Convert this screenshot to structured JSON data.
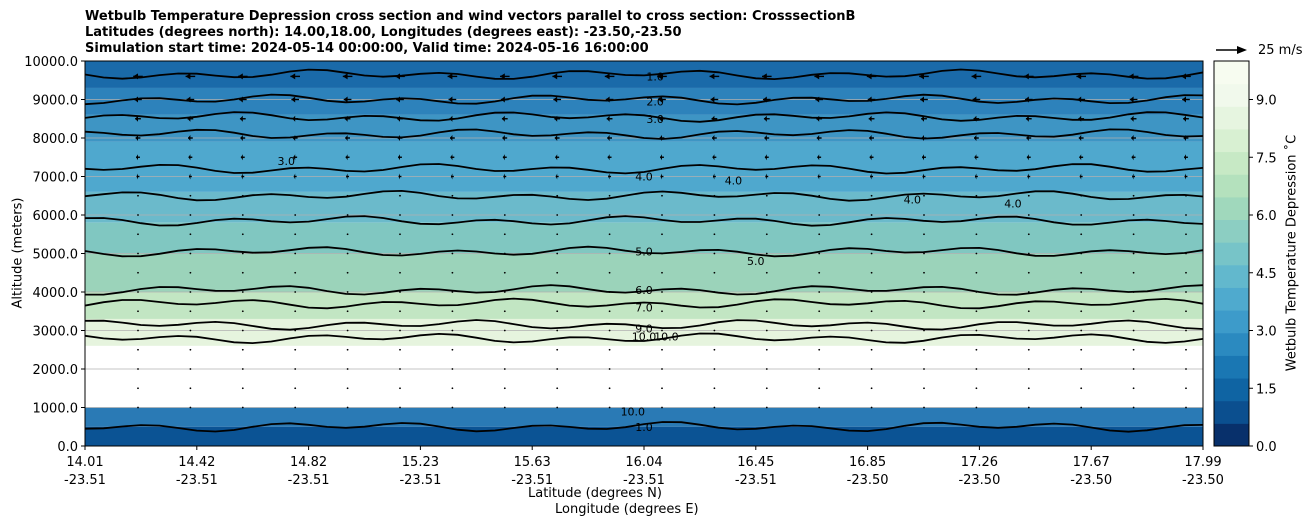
{
  "chart_data": {
    "type": "contour",
    "title_lines": [
      "Wetbulb Temperature Depression cross section and wind vectors parallel to cross section: CrosssectionB",
      "Latitudes (degrees north): 14.00,18.00, Longitudes (degrees east): -23.50,-23.50",
      "Simulation start time: 2024-05-14 00:00:00, Valid time: 2024-05-16 16:00:00"
    ],
    "xlabel_lat": "Latitude (degrees N)",
    "xlabel_lon": "Longitude (degrees E)",
    "ylabel": "Altitude (meters)",
    "colorbar_label": "Wetbulb Temperature Depression ˚C",
    "colorbar_ticks": [
      "0.0",
      "1.5",
      "3.0",
      "4.5",
      "6.0",
      "7.5",
      "9.0"
    ],
    "colorbar_range": [
      0,
      10
    ],
    "wind_reference": "25 m/s",
    "ylim": [
      0,
      10000
    ],
    "yticks": [
      "0.0",
      "1000.0",
      "2000.0",
      "3000.0",
      "4000.0",
      "5000.0",
      "6000.0",
      "7000.0",
      "8000.0",
      "9000.0",
      "10000.0"
    ],
    "xticks": [
      {
        "lat": "14.01",
        "lon": "-23.51"
      },
      {
        "lat": "14.42",
        "lon": "-23.51"
      },
      {
        "lat": "14.82",
        "lon": "-23.51"
      },
      {
        "lat": "15.23",
        "lon": "-23.51"
      },
      {
        "lat": "15.63",
        "lon": "-23.51"
      },
      {
        "lat": "16.04",
        "lon": "-23.51"
      },
      {
        "lat": "16.45",
        "lon": "-23.51"
      },
      {
        "lat": "16.85",
        "lon": "-23.50"
      },
      {
        "lat": "17.26",
        "lon": "-23.50"
      },
      {
        "lat": "17.67",
        "lon": "-23.50"
      },
      {
        "lat": "17.99",
        "lon": "-23.50"
      }
    ],
    "bands": [
      {
        "bottom": 9300,
        "top": 10000,
        "color": "#1a6aa9"
      },
      {
        "bottom": 8600,
        "top": 9300,
        "color": "#2d82bb"
      },
      {
        "bottom": 7900,
        "top": 8600,
        "color": "#3e95c4"
      },
      {
        "bottom": 6600,
        "top": 7900,
        "color": "#4fa8ce"
      },
      {
        "bottom": 5800,
        "top": 6600,
        "color": "#6bbacb"
      },
      {
        "bottom": 5000,
        "top": 5800,
        "color": "#80c7c1"
      },
      {
        "bottom": 4000,
        "top": 5000,
        "color": "#9bd3ba"
      },
      {
        "bottom": 3300,
        "top": 4000,
        "color": "#c2e6c3"
      },
      {
        "bottom": 2600,
        "top": 3300,
        "color": "#e6f4de"
      },
      {
        "bottom": 1000,
        "top": 2600,
        "color": "#ffffff"
      },
      {
        "bottom": 500,
        "top": 1000,
        "color": "#2a7ab5"
      },
      {
        "bottom": 0,
        "top": 500,
        "color": "#0b5394"
      }
    ],
    "contours": [
      {
        "level": "1.0",
        "altitude": 9650
      },
      {
        "level": "2.0",
        "altitude": 9000
      },
      {
        "level": "3.0",
        "altitude": 8550
      },
      {
        "level": "3.0",
        "altitude": 8100
      },
      {
        "level": "4.0",
        "altitude": 7200
      },
      {
        "level": "4.0",
        "altitude": 6500
      },
      {
        "level": "5.0",
        "altitude": 5850
      },
      {
        "level": "5.0",
        "altitude": 5050
      },
      {
        "level": "6.0",
        "altitude": 4050
      },
      {
        "level": "7.0",
        "altitude": 3700
      },
      {
        "level": "9.0",
        "altitude": 3150
      },
      {
        "level": "10.0",
        "altitude": 2800
      },
      {
        "level": "1.0",
        "altitude": 500
      }
    ],
    "inline_labels": [
      {
        "text": "1.0",
        "x_frac": 0.51,
        "altitude": 9600
      },
      {
        "text": "2.0",
        "x_frac": 0.51,
        "altitude": 8950
      },
      {
        "text": "3.0",
        "x_frac": 0.51,
        "altitude": 8500
      },
      {
        "text": "5.0",
        "x_frac": 0.5,
        "altitude": 5050
      },
      {
        "text": "6.0",
        "x_frac": 0.5,
        "altitude": 4050
      },
      {
        "text": "7.0",
        "x_frac": 0.5,
        "altitude": 3600
      },
      {
        "text": "9.0",
        "x_frac": 0.5,
        "altitude": 3050
      },
      {
        "text": "10.0",
        "x_frac": 0.5,
        "altitude": 2850
      },
      {
        "text": "10.0",
        "x_frac": 0.52,
        "altitude": 2850
      },
      {
        "text": "4.0",
        "x_frac": 0.5,
        "altitude": 7000
      },
      {
        "text": "4.0",
        "x_frac": 0.58,
        "altitude": 6900
      },
      {
        "text": "4.0",
        "x_frac": 0.74,
        "altitude": 6400
      },
      {
        "text": "4.0",
        "x_frac": 0.83,
        "altitude": 6300
      },
      {
        "text": "3.0",
        "x_frac": 0.18,
        "altitude": 7400
      },
      {
        "text": "5.0",
        "x_frac": 0.6,
        "altitude": 4800
      },
      {
        "text": "10.0",
        "x_frac": 0.49,
        "altitude": 900
      },
      {
        "text": "1.0",
        "x_frac": 0.5,
        "altitude": 500
      }
    ],
    "wind_rows": [
      {
        "altitude": 9600,
        "u": -10
      },
      {
        "altitude": 9000,
        "u": -8
      },
      {
        "altitude": 8500,
        "u": -6
      },
      {
        "altitude": 8000,
        "u": -5
      },
      {
        "altitude": 7500,
        "u": -4
      },
      {
        "altitude": 7000,
        "u": -3
      },
      {
        "altitude": 6500,
        "u": -2
      },
      {
        "altitude": 6000,
        "u": -1.5
      },
      {
        "altitude": 5500,
        "u": -1
      },
      {
        "altitude": 5000,
        "u": -0.7
      },
      {
        "altitude": 4500,
        "u": 0.6
      },
      {
        "altitude": 4000,
        "u": 0.5
      },
      {
        "altitude": 3500,
        "u": 0.4
      },
      {
        "altitude": 3000,
        "u": 0.3
      },
      {
        "altitude": 2500,
        "u": 0.2
      },
      {
        "altitude": 2000,
        "u": 0.1
      },
      {
        "altitude": 1500,
        "u": 0.1
      },
      {
        "altitude": 1000,
        "u": 0.1
      }
    ],
    "wind_columns": 21
  }
}
